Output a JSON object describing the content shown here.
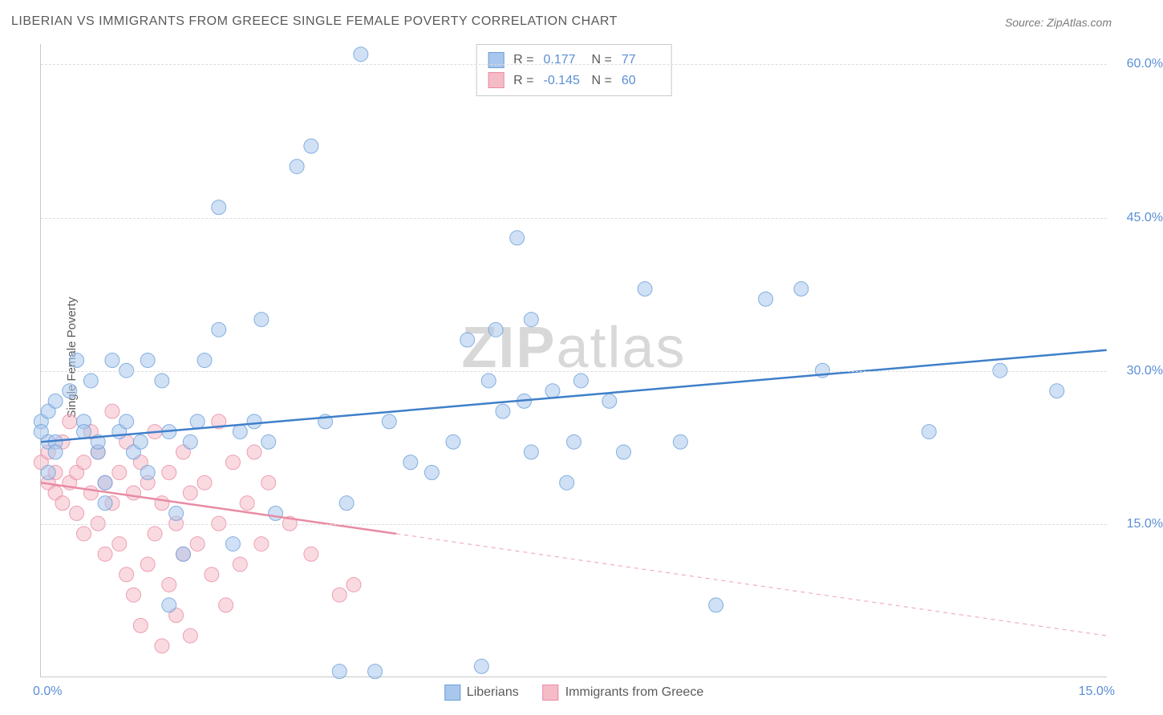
{
  "title": "LIBERIAN VS IMMIGRANTS FROM GREECE SINGLE FEMALE POVERTY CORRELATION CHART",
  "source": "Source: ZipAtlas.com",
  "ylabel": "Single Female Poverty",
  "watermark_a": "ZIP",
  "watermark_b": "atlas",
  "chart": {
    "type": "scatter",
    "colors": {
      "series_a_fill": "#a9c7ec",
      "series_a_stroke": "#6a9fd8",
      "series_b_fill": "#f5bcc8",
      "series_b_stroke": "#e88ba3",
      "line_a": "#3f7fc9",
      "line_b": "#e88ba3",
      "grid": "#dcdcdc",
      "axis": "#c8c8c8",
      "tick_text": "#5b8fd6",
      "label_text": "#5a5a5a",
      "watermark": "#d8d8d8"
    },
    "xlim": [
      0,
      15
    ],
    "ylim": [
      0,
      62
    ],
    "yticks": [
      15,
      30,
      45,
      60
    ],
    "ytick_labels": [
      "15.0%",
      "30.0%",
      "45.0%",
      "60.0%"
    ],
    "xtick_left": "0.0%",
    "xtick_right": "15.0%",
    "marker_radius": 9,
    "marker_opacity": 0.55,
    "line_width": 2.5,
    "series_a": {
      "name": "Liberians",
      "R": "0.177",
      "N": "77",
      "trend": {
        "y_at_x0": 23,
        "y_at_x15": 32,
        "solid_until_x": 15
      },
      "points": [
        [
          0.0,
          25
        ],
        [
          0.0,
          24
        ],
        [
          0.1,
          23
        ],
        [
          0.1,
          26
        ],
        [
          0.2,
          27
        ],
        [
          0.2,
          23
        ],
        [
          0.2,
          22
        ],
        [
          0.1,
          20
        ],
        [
          0.4,
          28
        ],
        [
          0.5,
          31
        ],
        [
          0.6,
          25
        ],
        [
          0.6,
          24
        ],
        [
          0.7,
          29
        ],
        [
          0.8,
          22
        ],
        [
          0.8,
          23
        ],
        [
          0.9,
          17
        ],
        [
          0.9,
          19
        ],
        [
          1.0,
          31
        ],
        [
          1.1,
          24
        ],
        [
          1.2,
          25
        ],
        [
          1.2,
          30
        ],
        [
          1.3,
          22
        ],
        [
          1.4,
          23
        ],
        [
          1.5,
          20
        ],
        [
          1.5,
          31
        ],
        [
          1.7,
          29
        ],
        [
          1.8,
          24
        ],
        [
          1.8,
          7
        ],
        [
          1.9,
          16
        ],
        [
          2.0,
          12
        ],
        [
          2.1,
          23
        ],
        [
          2.2,
          25
        ],
        [
          2.3,
          31
        ],
        [
          2.5,
          34
        ],
        [
          2.5,
          46
        ],
        [
          2.7,
          13
        ],
        [
          2.8,
          24
        ],
        [
          3.0,
          25
        ],
        [
          3.1,
          35
        ],
        [
          3.2,
          23
        ],
        [
          3.3,
          16
        ],
        [
          3.6,
          50
        ],
        [
          3.8,
          52
        ],
        [
          4.0,
          25
        ],
        [
          4.2,
          0.5
        ],
        [
          4.3,
          17
        ],
        [
          4.5,
          61
        ],
        [
          4.7,
          0.5
        ],
        [
          4.9,
          25
        ],
        [
          5.2,
          21
        ],
        [
          5.5,
          20
        ],
        [
          5.8,
          23
        ],
        [
          6.0,
          33
        ],
        [
          6.2,
          1
        ],
        [
          6.3,
          29
        ],
        [
          6.4,
          34
        ],
        [
          6.5,
          26
        ],
        [
          6.7,
          43
        ],
        [
          6.8,
          27
        ],
        [
          6.9,
          22
        ],
        [
          6.9,
          35
        ],
        [
          7.2,
          28
        ],
        [
          7.4,
          19
        ],
        [
          7.5,
          23
        ],
        [
          7.6,
          29
        ],
        [
          8.0,
          27
        ],
        [
          8.2,
          22
        ],
        [
          8.5,
          38
        ],
        [
          9.0,
          23
        ],
        [
          9.5,
          7
        ],
        [
          10.2,
          37
        ],
        [
          10.7,
          38
        ],
        [
          11.0,
          30
        ],
        [
          12.5,
          24
        ],
        [
          13.5,
          30
        ],
        [
          14.3,
          28
        ]
      ]
    },
    "series_b": {
      "name": "Immigrants from Greece",
      "R": "-0.145",
      "N": "60",
      "trend": {
        "y_at_x0": 19,
        "y_at_x15": 4,
        "solid_until_x": 5
      },
      "points": [
        [
          0.0,
          21
        ],
        [
          0.1,
          22
        ],
        [
          0.1,
          19
        ],
        [
          0.2,
          20
        ],
        [
          0.2,
          18
        ],
        [
          0.3,
          23
        ],
        [
          0.3,
          17
        ],
        [
          0.4,
          25
        ],
        [
          0.4,
          19
        ],
        [
          0.5,
          20
        ],
        [
          0.5,
          16
        ],
        [
          0.6,
          21
        ],
        [
          0.6,
          14
        ],
        [
          0.7,
          24
        ],
        [
          0.7,
          18
        ],
        [
          0.8,
          22
        ],
        [
          0.8,
          15
        ],
        [
          0.9,
          19
        ],
        [
          0.9,
          12
        ],
        [
          1.0,
          26
        ],
        [
          1.0,
          17
        ],
        [
          1.1,
          20
        ],
        [
          1.1,
          13
        ],
        [
          1.2,
          23
        ],
        [
          1.2,
          10
        ],
        [
          1.3,
          18
        ],
        [
          1.3,
          8
        ],
        [
          1.4,
          21
        ],
        [
          1.4,
          5
        ],
        [
          1.5,
          19
        ],
        [
          1.5,
          11
        ],
        [
          1.6,
          24
        ],
        [
          1.6,
          14
        ],
        [
          1.7,
          17
        ],
        [
          1.7,
          3
        ],
        [
          1.8,
          20
        ],
        [
          1.8,
          9
        ],
        [
          1.9,
          15
        ],
        [
          1.9,
          6
        ],
        [
          2.0,
          22
        ],
        [
          2.0,
          12
        ],
        [
          2.1,
          18
        ],
        [
          2.1,
          4
        ],
        [
          2.2,
          13
        ],
        [
          2.3,
          19
        ],
        [
          2.4,
          10
        ],
        [
          2.5,
          25
        ],
        [
          2.5,
          15
        ],
        [
          2.6,
          7
        ],
        [
          2.7,
          21
        ],
        [
          2.8,
          11
        ],
        [
          2.9,
          17
        ],
        [
          3.0,
          22
        ],
        [
          3.1,
          13
        ],
        [
          3.2,
          19
        ],
        [
          3.5,
          15
        ],
        [
          3.8,
          12
        ],
        [
          4.2,
          8
        ],
        [
          4.4,
          9
        ]
      ]
    }
  },
  "legend": {
    "r_label": "R =",
    "n_label": "N ="
  }
}
